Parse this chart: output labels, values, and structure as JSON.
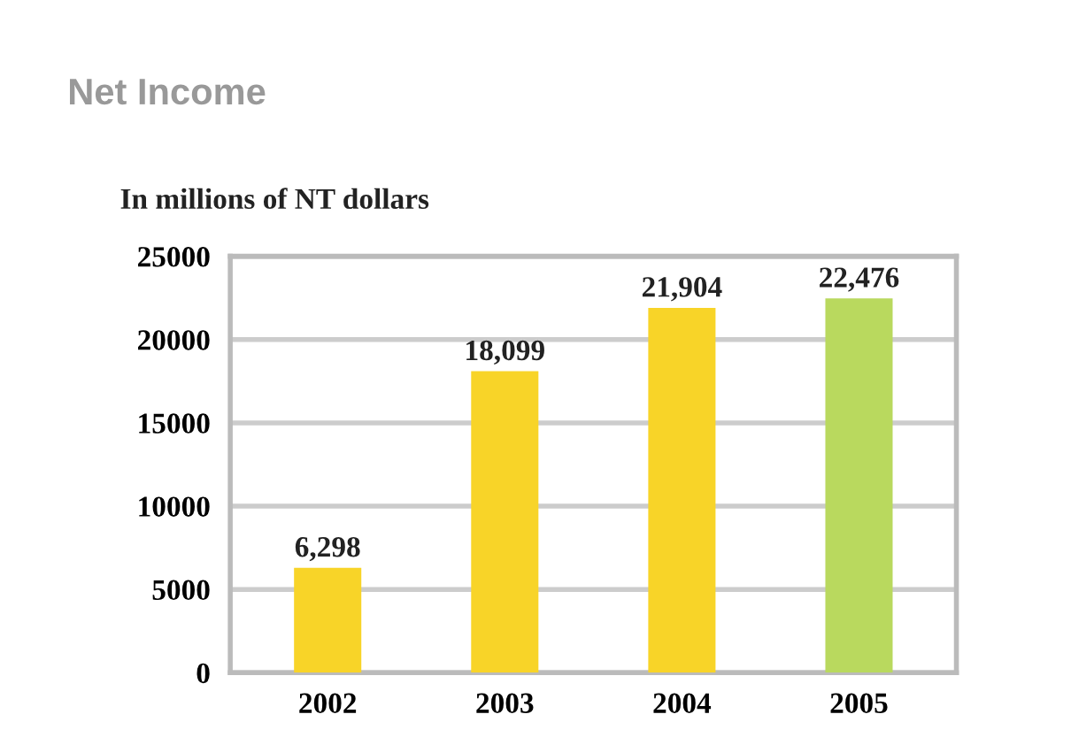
{
  "chart_data": {
    "type": "bar",
    "title": "Net Income",
    "subtitle": "In millions of NT dollars",
    "categories": [
      "2002",
      "2003",
      "2004",
      "2005"
    ],
    "values": [
      6298,
      18099,
      21904,
      22476
    ],
    "colors": [
      "#f8d428",
      "#f8d428",
      "#f8d428",
      "#b9d95e"
    ],
    "value_labels": [
      "6,298",
      "18,099",
      "21,904",
      "22,476"
    ],
    "ylim": [
      0,
      25000
    ],
    "yticks": [
      0,
      5000,
      10000,
      15000,
      20000,
      25000
    ],
    "grid": "y"
  }
}
